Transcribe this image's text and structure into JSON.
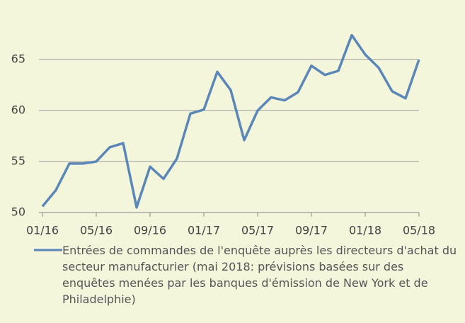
{
  "chart_data": {
    "type": "line",
    "categories": [
      "01/16",
      null,
      null,
      null,
      "05/16",
      null,
      null,
      null,
      "09/16",
      null,
      null,
      null,
      "01/17",
      null,
      null,
      null,
      "05/17",
      null,
      null,
      null,
      "09/17",
      null,
      null,
      null,
      "01/18",
      null,
      null,
      null,
      "05/18"
    ],
    "series": [
      {
        "name": "Entrées de commandes de l'enquête auprès les directeurs d'achat du secteur manufacturier (mai 2018: prévisions basées sur des enquêtes menées par les banques d'émission de New York et de Philadelphie)",
        "color": "#5b87b8",
        "values": [
          50.6,
          52.2,
          54.8,
          54.8,
          55.0,
          56.4,
          56.8,
          50.5,
          54.5,
          53.3,
          55.3,
          59.7,
          60.1,
          63.8,
          62.0,
          57.1,
          60.0,
          61.3,
          61.0,
          61.8,
          64.4,
          63.5,
          63.9,
          67.4,
          65.5,
          64.2,
          61.9,
          61.2,
          65.0
        ]
      }
    ],
    "ylim": [
      50,
      68
    ],
    "yticks": [
      50,
      55,
      60,
      65
    ],
    "grid": true
  }
}
